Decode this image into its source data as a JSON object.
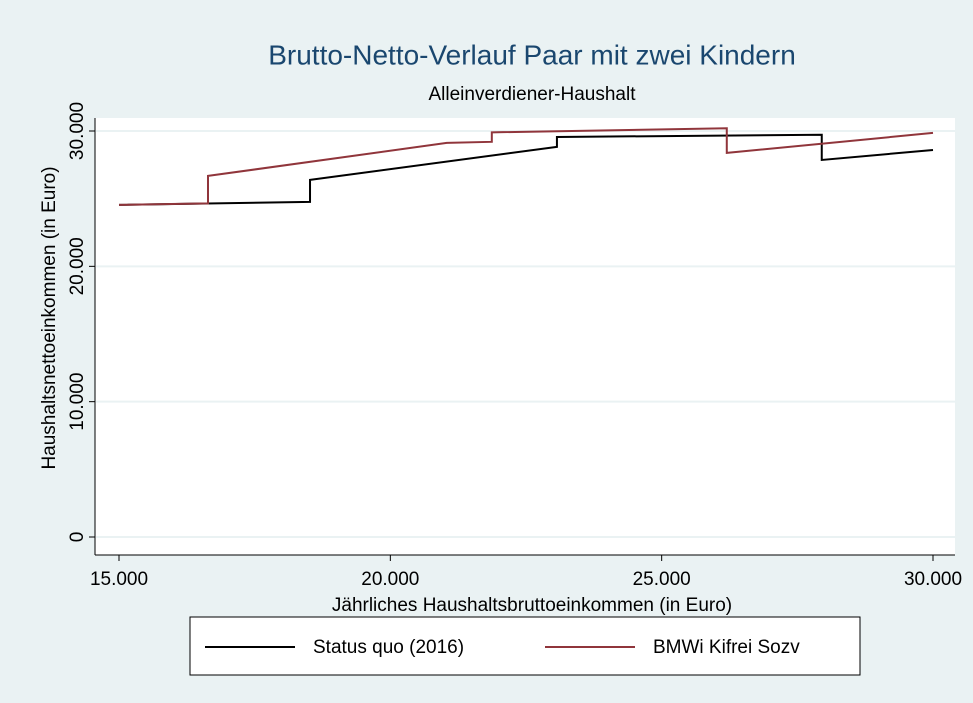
{
  "chart_data": {
    "type": "line",
    "title": "Brutto-Netto-Verlauf Paar mit zwei Kindern",
    "subtitle": "Alleinverdiener-Haushalt",
    "x_label": "Jährliches Haushaltsbruttoeinkommen (in Euro)",
    "y_label": "Haushaltsnettoeinkommen (in Euro)",
    "xlim": [
      15000,
      30000
    ],
    "ylim": [
      0,
      30000
    ],
    "xticks": [
      {
        "value": 15000,
        "label": "15.000"
      },
      {
        "value": 20000,
        "label": "20.000"
      },
      {
        "value": 25000,
        "label": "25.000"
      },
      {
        "value": 30000,
        "label": "30.000"
      }
    ],
    "yticks": [
      0,
      {
        "value": 10000,
        "label": "10.000"
      },
      {
        "value": 20000,
        "label": "20.000"
      },
      {
        "value": 30000,
        "label": "30.000"
      }
    ],
    "grid": true,
    "legend": "bottom",
    "series": [
      {
        "name": "Status quo (2016)",
        "color": "#000000",
        "x": [
          15000,
          18520,
          18520,
          23070,
          23070,
          27950,
          27950,
          30000
        ],
        "values": [
          24540,
          24760,
          26390,
          28830,
          29560,
          29720,
          27860,
          28600
        ]
      },
      {
        "name": "BMWi Kifrei Sozv",
        "color": "#90353b",
        "x": [
          15000,
          16640,
          16640,
          21040,
          21870,
          21870,
          26200,
          26200,
          30000
        ],
        "values": [
          24540,
          24650,
          26680,
          29120,
          29200,
          29900,
          30200,
          28380,
          29860
        ]
      }
    ]
  }
}
